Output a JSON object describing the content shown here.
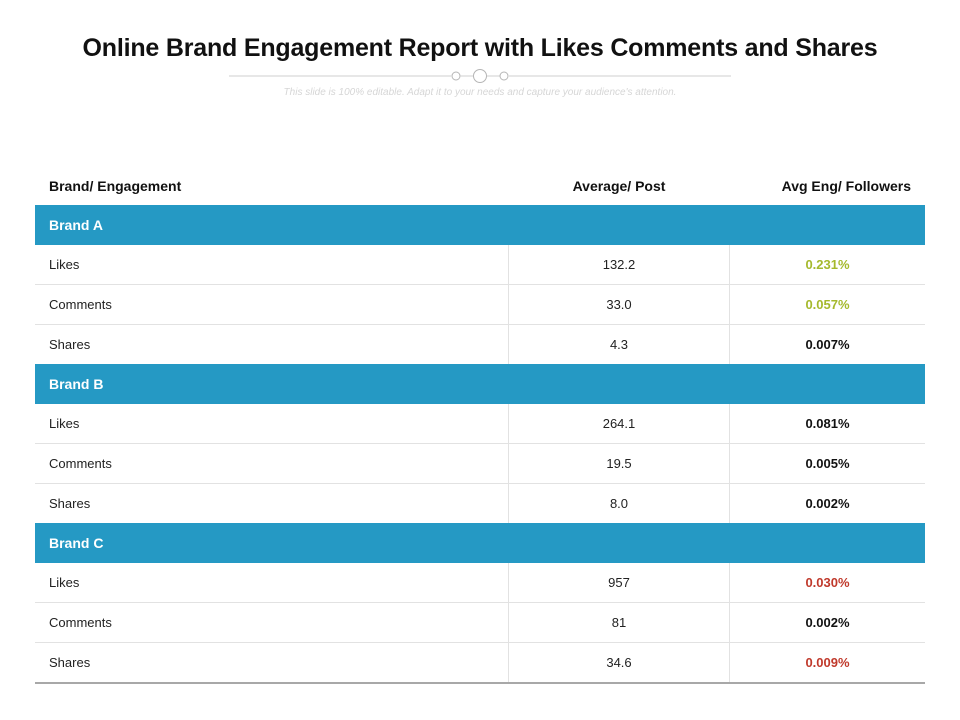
{
  "title": "Online Brand Engagement Report with Likes Comments and Shares",
  "subtitle": "This slide is 100% editable. Adapt it to your needs and capture your audience's attention.",
  "colors": {
    "brand_bar": "#2599c4",
    "green": "#a5b92c",
    "red": "#c0392b",
    "black": "#111111"
  },
  "table": {
    "headers": {
      "metric": "Brand/ Engagement",
      "average": "Average/ Post",
      "ratio": "Avg Eng/ Followers"
    },
    "brands": [
      {
        "name": "Brand A",
        "rows": [
          {
            "metric": "Likes",
            "average": "132.2",
            "ratio": "0.231%",
            "color": "#a5b92c"
          },
          {
            "metric": "Comments",
            "average": "33.0",
            "ratio": "0.057%",
            "color": "#a5b92c"
          },
          {
            "metric": "Shares",
            "average": "4.3",
            "ratio": "0.007%",
            "color": "#111111"
          }
        ]
      },
      {
        "name": "Brand B",
        "rows": [
          {
            "metric": "Likes",
            "average": "264.1",
            "ratio": "0.081%",
            "color": "#111111"
          },
          {
            "metric": "Comments",
            "average": "19.5",
            "ratio": "0.005%",
            "color": "#111111"
          },
          {
            "metric": "Shares",
            "average": "8.0",
            "ratio": "0.002%",
            "color": "#111111"
          }
        ]
      },
      {
        "name": "Brand C",
        "rows": [
          {
            "metric": "Likes",
            "average": "957",
            "ratio": "0.030%",
            "color": "#c0392b"
          },
          {
            "metric": "Comments",
            "average": "81",
            "ratio": "0.002%",
            "color": "#111111"
          },
          {
            "metric": "Shares",
            "average": "34.6",
            "ratio": "0.009%",
            "color": "#c0392b"
          }
        ]
      }
    ]
  }
}
